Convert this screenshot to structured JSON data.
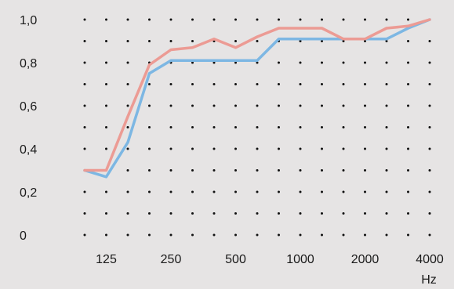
{
  "chart_data": {
    "type": "line",
    "xlabel": "",
    "ylabel": "",
    "x_unit": "Hz",
    "x_tick_labels": [
      "125",
      "250",
      "500",
      "1000",
      "2000",
      "4000"
    ],
    "y_tick_labels": [
      "0",
      "0,2",
      "0,4",
      "0,6",
      "0,8",
      "1,0"
    ],
    "y_ticks": [
      0,
      0.2,
      0.4,
      0.6,
      0.8,
      1.0
    ],
    "ylim": [
      0,
      1.0
    ],
    "x_frequencies": [
      100,
      125,
      160,
      200,
      250,
      315,
      400,
      500,
      630,
      800,
      1000,
      1250,
      1600,
      2000,
      2500,
      3150,
      4000
    ],
    "grid": "dotted",
    "series": [
      {
        "color": "#7db7e3",
        "values": [
          0.3,
          0.27,
          0.43,
          0.75,
          0.81,
          0.81,
          0.81,
          0.81,
          0.81,
          0.91,
          0.91,
          0.91,
          0.91,
          0.91,
          0.91,
          0.96,
          1.0
        ]
      },
      {
        "color": "#ec9b94",
        "values": [
          0.3,
          0.3,
          0.55,
          0.79,
          0.86,
          0.87,
          0.91,
          0.87,
          0.92,
          0.96,
          0.96,
          0.96,
          0.91,
          0.91,
          0.96,
          0.97,
          1.0
        ]
      }
    ]
  }
}
